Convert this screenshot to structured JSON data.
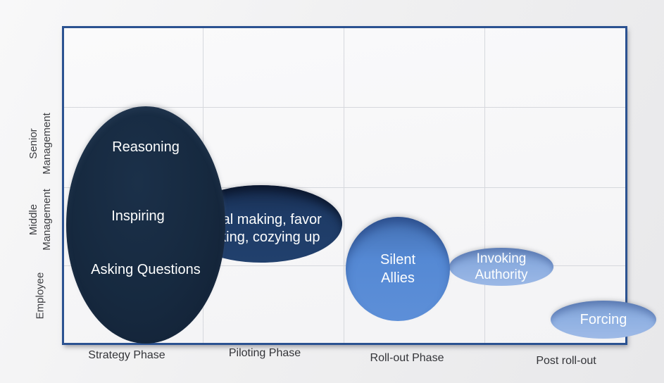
{
  "colors": {
    "chart_border": "#2b5291",
    "grid": "#d6d8dd",
    "bubble_dark_navy": "#16293f",
    "bubble_navy": "#1e3b66",
    "bubble_medium_blue": "#5589d4",
    "bubble_light_blue": "#8cade0",
    "bubble_text": "#ffffff",
    "axis_text": "#333438"
  },
  "x_axis": {
    "labels": [
      "Strategy Phase",
      "Piloting Phase",
      "Roll-out Phase",
      "Post roll-out"
    ]
  },
  "y_axis": {
    "labels": [
      [
        "Senior",
        "Management"
      ],
      [
        "Middle",
        "Management"
      ],
      [
        "Employee"
      ]
    ]
  },
  "bubbles": {
    "tactics": {
      "lines": [
        "Reasoning",
        "Inspiring",
        "Asking Questions"
      ],
      "color": "#16293f"
    },
    "deal": {
      "lines": [
        "Deal making, favor",
        "asking, cozying up"
      ],
      "color": "#1e3b66"
    },
    "silent": {
      "lines": [
        "Silent",
        "Allies"
      ],
      "color": "#5589d4"
    },
    "invoking": {
      "lines": [
        "Invoking",
        "Authority"
      ],
      "color": "#8cade0"
    },
    "forcing": {
      "label": "Forcing",
      "color": "#8fb0e2"
    }
  },
  "chart_data": {
    "type": "scatter",
    "title": "",
    "xlabel": "",
    "ylabel": "",
    "x_categories": [
      "Strategy Phase",
      "Piloting Phase",
      "Roll-out Phase",
      "Post roll-out"
    ],
    "y_categories": [
      "Senior Management",
      "Middle Management",
      "Employee"
    ],
    "grid": true,
    "legend": false,
    "points": [
      {
        "label": "Reasoning, Inspiring, Asking Questions",
        "x": "Strategy Phase",
        "y_span": [
          "Senior Management",
          "Employee"
        ],
        "size": "large",
        "color": "#16293f"
      },
      {
        "label": "Deal making, favor asking, cozying up",
        "x": "Strategy Phase / Piloting Phase",
        "y_span": [
          "Middle Management"
        ],
        "size": "medium",
        "color": "#1e3b66"
      },
      {
        "label": "Silent Allies",
        "x": "Roll-out Phase",
        "y_span": [
          "Middle Management",
          "Employee"
        ],
        "size": "medium",
        "color": "#5589d4"
      },
      {
        "label": "Invoking Authority",
        "x": "Roll-out Phase / Post roll-out",
        "y_span": [
          "Middle Management",
          "Employee"
        ],
        "size": "small",
        "color": "#8cade0"
      },
      {
        "label": "Forcing",
        "x": "Post roll-out",
        "y_span": [
          "Employee"
        ],
        "size": "small",
        "color": "#8fb0e2"
      }
    ]
  }
}
